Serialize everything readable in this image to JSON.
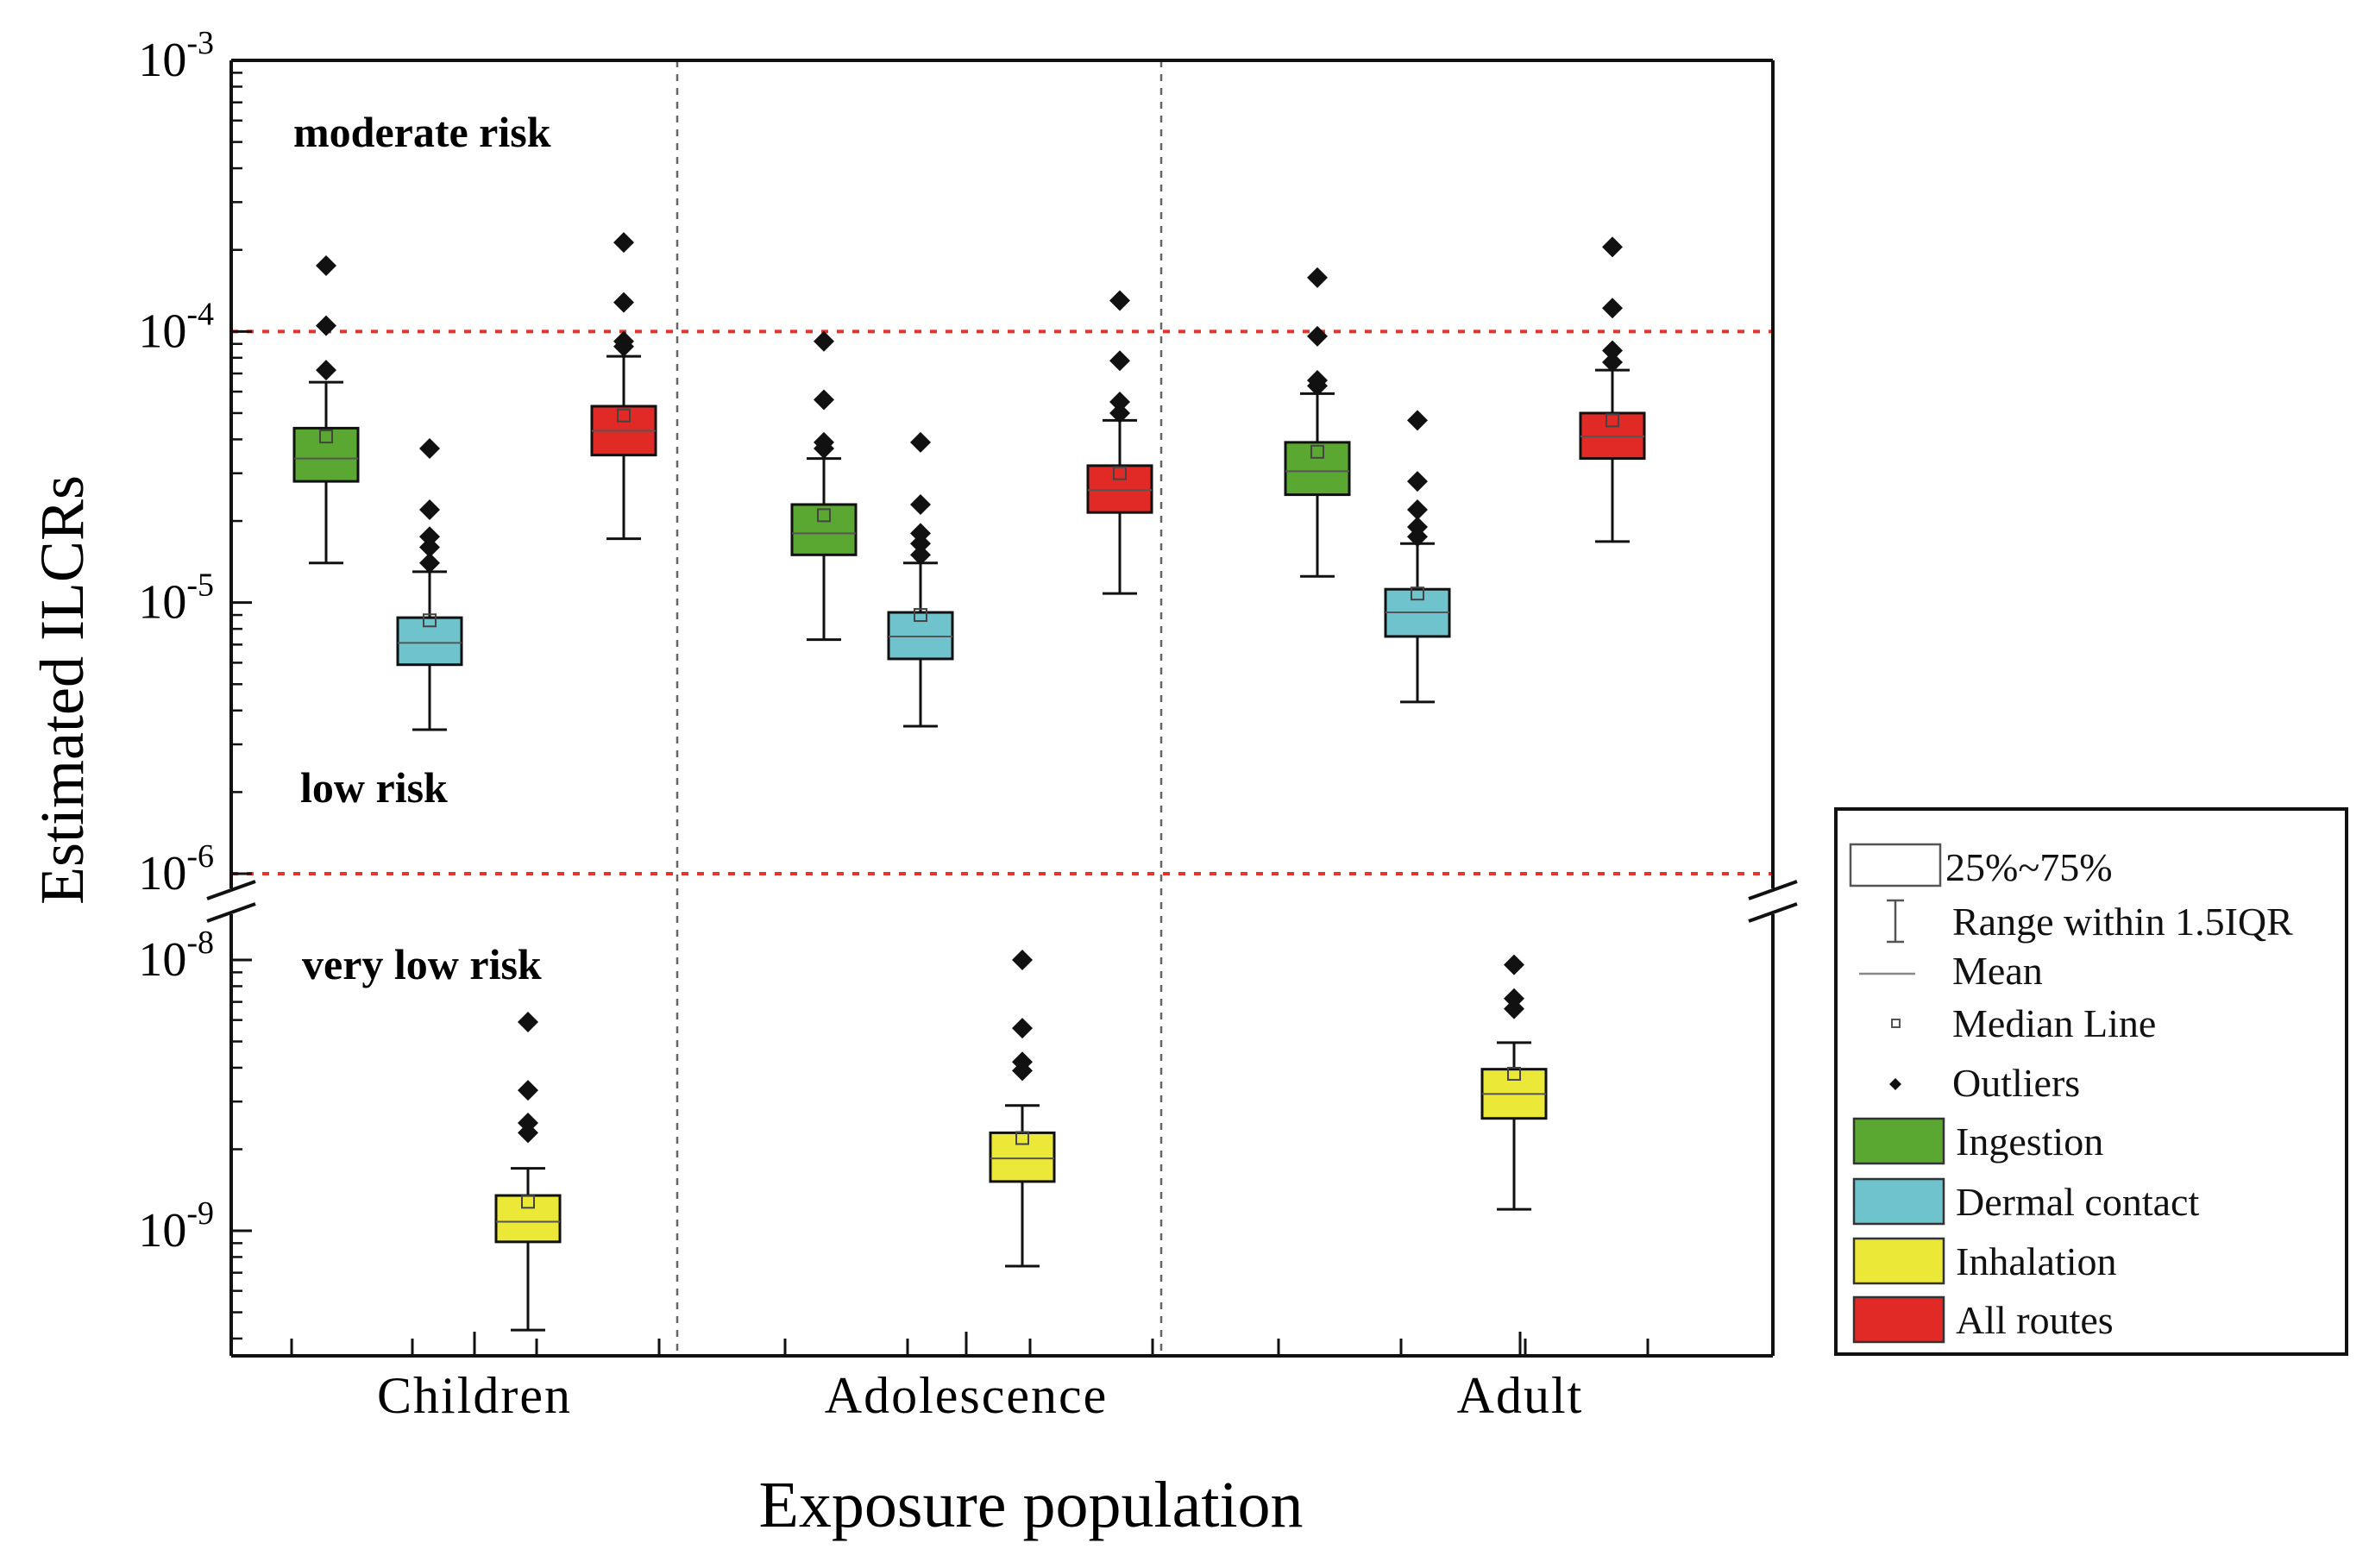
{
  "chart_data": {
    "type": "box",
    "title": "",
    "xlabel": "Exposure population",
    "ylabel": "Estimated ILCRs",
    "yscale": "log",
    "ylim_upper": [
      1e-06,
      0.001
    ],
    "ylim_lower": [
      3.5e-10,
      1.4e-08
    ],
    "axis_break": "between 10^-8 and 10^-6",
    "categories": [
      "Children",
      "Adolescence",
      "Adult"
    ],
    "y_ticks": [
      {
        "base": "10",
        "exp": "-3",
        "value": 0.001
      },
      {
        "base": "10",
        "exp": "-4",
        "value": 0.0001
      },
      {
        "base": "10",
        "exp": "-5",
        "value": 1e-05
      },
      {
        "base": "10",
        "exp": "-6",
        "value": 1e-06
      },
      {
        "base": "10",
        "exp": "-8",
        "value": 1e-08
      },
      {
        "base": "10",
        "exp": "-9",
        "value": 1e-09
      }
    ],
    "thresholds": [
      0.0001,
      1e-06
    ],
    "zone_labels": [
      "moderate risk",
      "low risk",
      "very low risk"
    ],
    "series": [
      {
        "name": "Ingestion",
        "color": "#5aa832",
        "boxes": [
          {
            "category": "Children",
            "whisker_low": 1.4e-05,
            "q1": 2.8e-05,
            "median_line": 3.4e-05,
            "mean": 4.1e-05,
            "q3": 4.4e-05,
            "whisker_high": 6.5e-05,
            "outliers": [
              7.2e-05,
              0.000105,
              0.000175
            ]
          },
          {
            "category": "Adolescence",
            "whisker_low": 7.3e-06,
            "q1": 1.5e-05,
            "median_line": 1.8e-05,
            "mean": 2.1e-05,
            "q3": 2.3e-05,
            "whisker_high": 3.4e-05,
            "outliers": [
              3.7e-05,
              3.9e-05,
              5.6e-05,
              9.2e-05
            ]
          },
          {
            "category": "Adult",
            "whisker_low": 1.25e-05,
            "q1": 2.5e-05,
            "median_line": 3.05e-05,
            "mean": 3.6e-05,
            "q3": 3.9e-05,
            "whisker_high": 5.9e-05,
            "outliers": [
              6.3e-05,
              6.6e-05,
              9.6e-05,
              0.000158
            ]
          }
        ]
      },
      {
        "name": "Dermal contact",
        "color": "#6ec3cc",
        "boxes": [
          {
            "category": "Children",
            "whisker_low": 3.4e-06,
            "q1": 5.9e-06,
            "median_line": 7.1e-06,
            "mean": 8.6e-06,
            "q3": 8.8e-06,
            "whisker_high": 1.3e-05,
            "outliers": [
              1.4e-05,
              1.6e-05,
              1.75e-05,
              2.2e-05,
              3.7e-05
            ]
          },
          {
            "category": "Adolescence",
            "whisker_low": 3.5e-06,
            "q1": 6.2e-06,
            "median_line": 7.5e-06,
            "mean": 9e-06,
            "q3": 9.2e-06,
            "whisker_high": 1.4e-05,
            "outliers": [
              1.5e-05,
              1.65e-05,
              1.8e-05,
              2.3e-05,
              3.9e-05
            ]
          },
          {
            "category": "Adult",
            "whisker_low": 4.3e-06,
            "q1": 7.5e-06,
            "median_line": 9.2e-06,
            "mean": 1.08e-05,
            "q3": 1.12e-05,
            "whisker_high": 1.65e-05,
            "outliers": [
              1.75e-05,
              1.9e-05,
              2.2e-05,
              2.8e-05,
              4.7e-05
            ]
          }
        ]
      },
      {
        "name": "Inhalation",
        "color": "#ece838",
        "boxes": [
          {
            "category": "Children",
            "whisker_low": 4.3e-10,
            "q1": 9.1e-10,
            "median_line": 1.08e-09,
            "mean": 1.28e-09,
            "q3": 1.35e-09,
            "whisker_high": 1.7e-09,
            "outliers": [
              2.3e-09,
              2.5e-09,
              3.3e-09,
              5.9e-09
            ]
          },
          {
            "category": "Adolescence",
            "whisker_low": 7.4e-10,
            "q1": 1.52e-09,
            "median_line": 1.85e-09,
            "mean": 2.2e-09,
            "q3": 2.3e-09,
            "whisker_high": 2.9e-09,
            "outliers": [
              3.9e-09,
              4.2e-09,
              5.6e-09,
              1e-08
            ]
          },
          {
            "category": "Adult",
            "whisker_low": 1.2e-09,
            "q1": 2.6e-09,
            "median_line": 3.2e-09,
            "mean": 3.8e-09,
            "q3": 3.95e-09,
            "whisker_high": 4.95e-09,
            "outliers": [
              6.6e-09,
              7.2e-09,
              9.6e-09
            ]
          }
        ]
      },
      {
        "name": "All routes",
        "color": "#e12a26",
        "boxes": [
          {
            "category": "Children",
            "whisker_low": 1.72e-05,
            "q1": 3.5e-05,
            "median_line": 4.3e-05,
            "mean": 4.9e-05,
            "q3": 5.3e-05,
            "whisker_high": 8.1e-05,
            "outliers": [
              8.8e-05,
              9.2e-05,
              0.000128,
              0.000213
            ]
          },
          {
            "category": "Adolescence",
            "whisker_low": 1.08e-05,
            "q1": 2.15e-05,
            "median_line": 2.6e-05,
            "mean": 3e-05,
            "q3": 3.2e-05,
            "whisker_high": 4.7e-05,
            "outliers": [
              5e-05,
              5.5e-05,
              7.8e-05,
              0.00013
            ]
          },
          {
            "category": "Adult",
            "whisker_low": 1.68e-05,
            "q1": 3.4e-05,
            "median_line": 4.1e-05,
            "mean": 4.7e-05,
            "q3": 5e-05,
            "whisker_high": 7.2e-05,
            "outliers": [
              7.7e-05,
              8.5e-05,
              0.000122,
              0.000205
            ]
          }
        ]
      }
    ],
    "legend": {
      "position": "right",
      "items": [
        {
          "label": "25%~75%",
          "symbol": "box"
        },
        {
          "label": "Range within 1.5IQR",
          "symbol": "whisker"
        },
        {
          "label": "Mean",
          "symbol": "line"
        },
        {
          "label": "Median Line",
          "symbol": "small-square"
        },
        {
          "label": "Outliers",
          "symbol": "diamond"
        },
        {
          "label": "Ingestion",
          "symbol": "fill",
          "color": "#5aa832"
        },
        {
          "label": "Dermal contact",
          "symbol": "fill",
          "color": "#6ec3cc"
        },
        {
          "label": "Inhalation",
          "symbol": "fill",
          "color": "#ece838"
        },
        {
          "label": "All routes",
          "symbol": "fill",
          "color": "#e12a26"
        }
      ]
    },
    "grid": false
  }
}
